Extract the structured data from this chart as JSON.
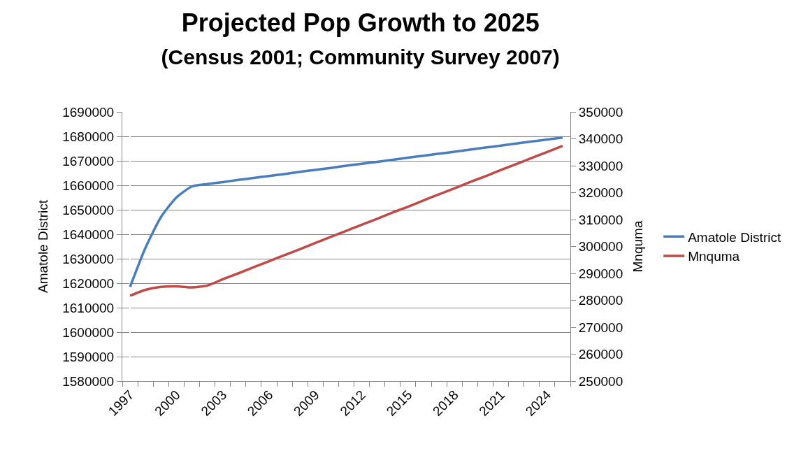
{
  "chart_data": {
    "type": "line",
    "title": "Projected Pop Growth to 2025",
    "subtitle": "(Census 2001; Community Survey 2007)",
    "ylabel": "Amatole District",
    "y2label": "Mnquma",
    "categories": [
      "1997",
      null,
      null,
      "2000",
      null,
      null,
      "2003",
      null,
      null,
      "2006",
      null,
      null,
      "2009",
      null,
      null,
      "2012",
      null,
      null,
      "2015",
      null,
      null,
      "2018",
      null,
      null,
      "2021",
      null,
      null,
      "2024",
      null
    ],
    "series": [
      {
        "name": "Amatole District",
        "color": "#4a7ebb",
        "values": [
          1618500,
          1634500,
          1647000,
          1655000,
          1659500,
          1660500,
          1661300,
          1662200,
          1663000,
          1663800,
          1664600,
          1665500,
          1666300,
          1667100,
          1668000,
          1668800,
          1669600,
          1670400,
          1671300,
          1672100,
          1672900,
          1673700,
          1674600,
          1675400,
          1676200,
          1677100,
          1677900,
          1678700,
          1679500
        ]
      },
      {
        "name": "Mnquma",
        "color": "#be4b48",
        "axis": "y2",
        "values": [
          281700,
          283900,
          285000,
          285200,
          284800,
          285500,
          287800,
          290000,
          292300,
          294500,
          296800,
          299000,
          301300,
          303600,
          305800,
          308100,
          310300,
          312600,
          314800,
          317100,
          319400,
          321600,
          323900,
          326100,
          328400,
          330600,
          332900,
          335100,
          337400
        ]
      }
    ],
    "ylim": [
      1580000,
      1690000
    ],
    "yticks": [
      1580000,
      1590000,
      1600000,
      1610000,
      1620000,
      1630000,
      1640000,
      1650000,
      1660000,
      1670000,
      1680000,
      1690000
    ],
    "y2lim": [
      250000,
      350000
    ],
    "y2ticks": [
      250000,
      260000,
      270000,
      280000,
      290000,
      300000,
      310000,
      320000,
      330000,
      340000,
      350000
    ],
    "grid": "y",
    "legend": "right",
    "marker": "none",
    "line_style": "solid"
  }
}
